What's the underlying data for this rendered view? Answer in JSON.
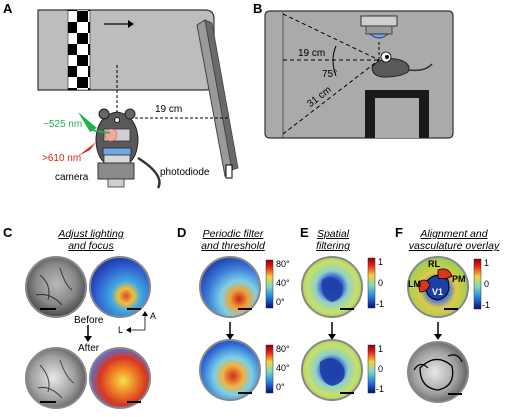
{
  "panels": {
    "A": {
      "letter": "A",
      "wavelength_green": "~525 nm",
      "wavelength_red": ">610 nm",
      "camera": "camera",
      "photodiode": "photodiode",
      "distance": "19 cm",
      "colors": {
        "green": "#22b14c",
        "red": "#e8201a"
      }
    },
    "B": {
      "letter": "B",
      "distance_top": "19 cm",
      "angle": "75°",
      "distance_diag": "31 cm"
    },
    "C": {
      "letter": "C",
      "heading_line1": "Adjust lighting",
      "heading_line2": "and focus",
      "before": "Before",
      "after": "After",
      "axis_lateral": "L",
      "axis_anterior": "A"
    },
    "D": {
      "letter": "D",
      "heading_line1": "Periodic filter",
      "heading_line2": "and threshold",
      "colorbar_ticks": [
        "80°",
        "40°",
        "0°"
      ]
    },
    "E": {
      "letter": "E",
      "heading_line1": "Spatial",
      "heading_line2": "filtering",
      "colorbar_ticks": [
        "1",
        "0",
        "-1"
      ]
    },
    "F": {
      "letter": "F",
      "heading_line1": "Alignment and",
      "heading_line2": "vasculature overlay",
      "area_labels": [
        "RL",
        "LM",
        "PM",
        "V1"
      ],
      "colorbar_ticks": [
        "1",
        "0",
        "-1"
      ]
    }
  }
}
